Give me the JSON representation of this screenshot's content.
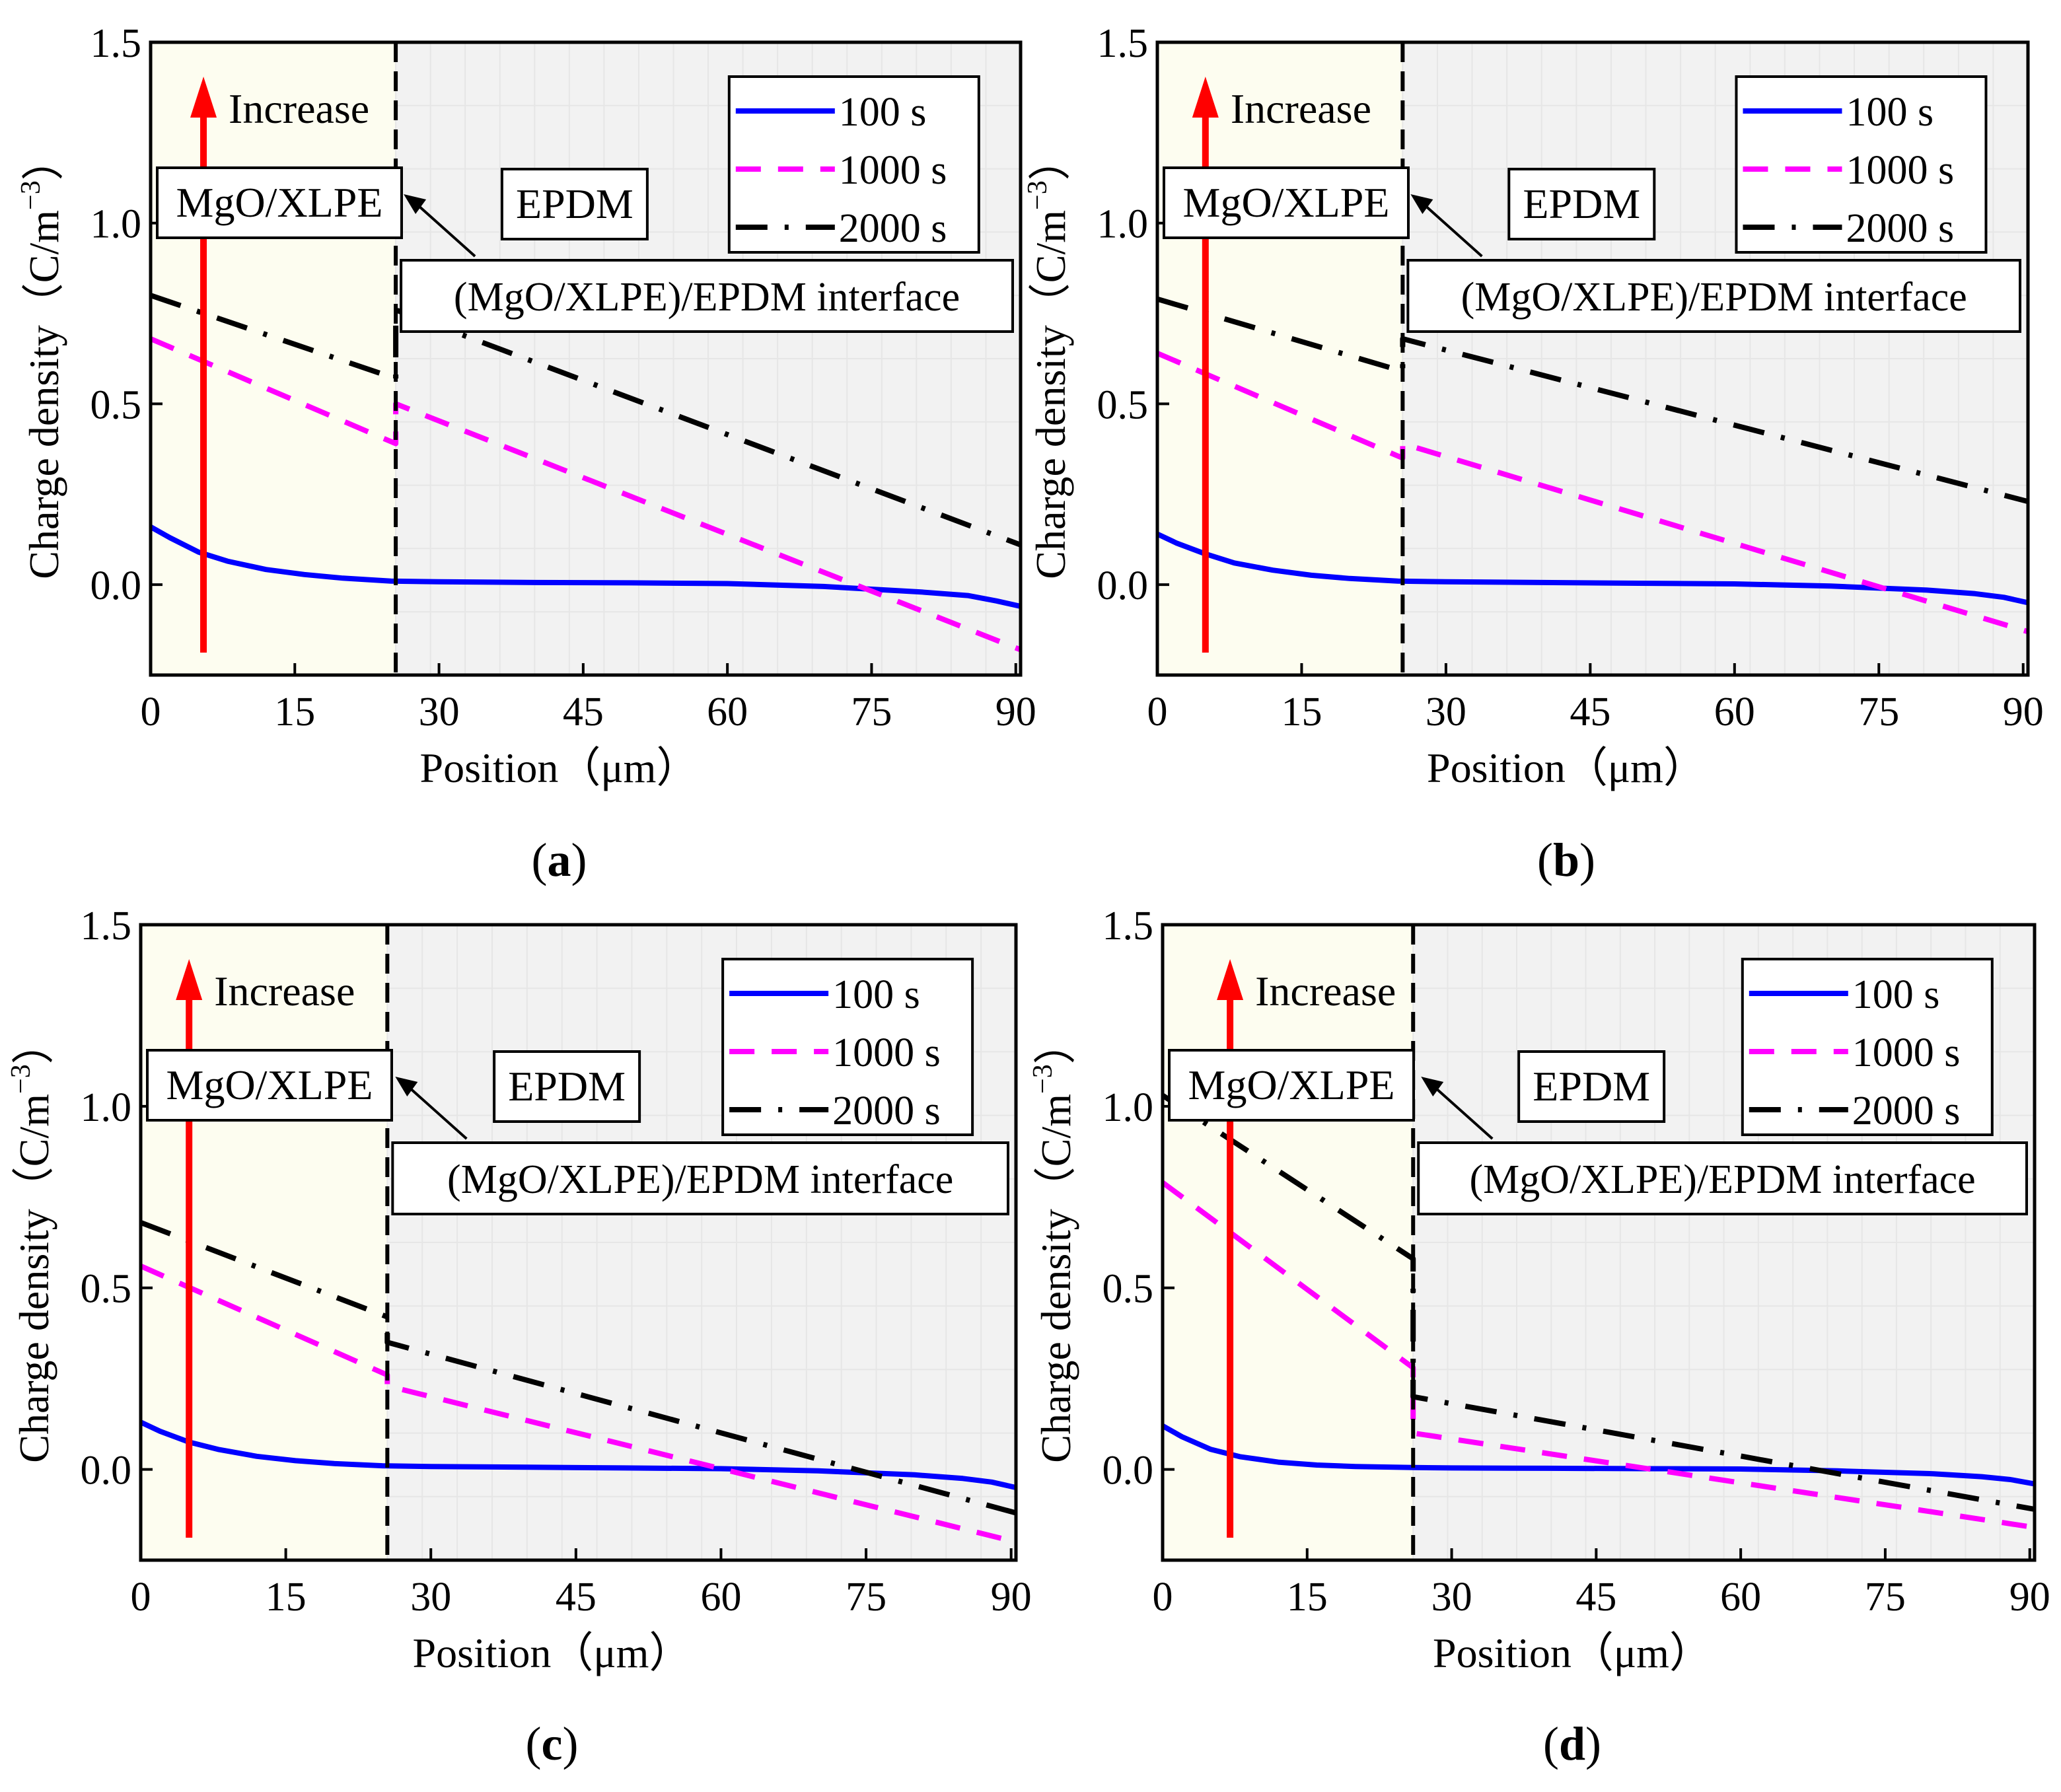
{
  "figure": {
    "panels": [
      {
        "letter": "a",
        "mgo_label": "MgO/XLPE",
        "epdm_label": "EPDM",
        "interface_label": "(MgO/XLPE)/EPDM  interface",
        "increase_label": "Increase",
        "arrow_x": 5.5,
        "xlabel": "Position（μm）",
        "ylabel": "Charge density（C/m"
      },
      {
        "letter": "b",
        "mgo_label": "MgO/XLPE",
        "epdm_label": "EPDM",
        "interface_label": "(MgO/XLPE)/EPDM interface",
        "increase_label": "Increase",
        "arrow_x": 5.0,
        "xlabel": "Position（μm）",
        "ylabel": "Charge density（C/m"
      },
      {
        "letter": "c",
        "mgo_label": "MgO/XLPE",
        "epdm_label": "EPDM",
        "interface_label": "(MgO/XLPE)/EPDM interface",
        "increase_label": "Increase",
        "arrow_x": 5.0,
        "xlabel": "Position（μm）",
        "ylabel": "Charge density（C/m"
      },
      {
        "letter": "d",
        "mgo_label": "MgO/XLPE",
        "epdm_label": "EPDM",
        "interface_label": "(MgO/XLPE)/EPDM interface",
        "increase_label": "Increase",
        "arrow_x": 7.0,
        "xlabel": "Position（μm）",
        "ylabel": "Charge density（C/m"
      }
    ],
    "ylabel_superscript": "−3",
    "ylabel_close": "）",
    "colors": {
      "s100": "#0000ff",
      "s1000": "#ff00ff",
      "s2000": "#000000",
      "arrow": "#ff0000",
      "mgo_region": "#fdfdf0",
      "epdm_region": "#f2f2f2"
    }
  },
  "chart_data": [
    {
      "type": "line",
      "panel": "a",
      "xlabel": "Position（μm）",
      "ylabel": "Charge density（C/m−3）",
      "xlim": [
        0,
        90.5
      ],
      "ylim": [
        -0.25,
        1.5
      ],
      "xticks": [
        0,
        15,
        30,
        45,
        60,
        75,
        90
      ],
      "yticks": [
        0.0,
        0.5,
        1.0,
        1.5
      ],
      "interface_x": 25.5,
      "series": [
        {
          "name": "100 s",
          "style": "solid",
          "x": [
            0,
            2,
            5,
            8,
            12,
            16,
            20,
            25,
            30,
            40,
            50,
            60,
            70,
            80,
            85,
            88,
            90.5
          ],
          "y": [
            0.16,
            0.13,
            0.09,
            0.065,
            0.042,
            0.028,
            0.018,
            0.01,
            0.008,
            0.006,
            0.005,
            0.003,
            -0.005,
            -0.02,
            -0.03,
            -0.045,
            -0.06
          ]
        },
        {
          "name": "1000 s",
          "style": "dashed",
          "x": [
            0,
            25.5,
            25.5,
            90.5
          ],
          "y": [
            0.68,
            0.39,
            0.5,
            -0.18
          ]
        },
        {
          "name": "2000 s",
          "style": "dashdot",
          "x": [
            0,
            25.5,
            25.5,
            90.5
          ],
          "y": [
            0.8,
            0.57,
            0.76,
            0.11
          ]
        }
      ]
    },
    {
      "type": "line",
      "panel": "b",
      "xlabel": "Position（μm）",
      "ylabel": "Charge density（C/m−3）",
      "xlim": [
        0,
        90.5
      ],
      "ylim": [
        -0.25,
        1.5
      ],
      "xticks": [
        0,
        15,
        30,
        45,
        60,
        75,
        90
      ],
      "yticks": [
        0.0,
        0.5,
        1.0,
        1.5
      ],
      "interface_x": 25.5,
      "series": [
        {
          "name": "100 s",
          "style": "solid",
          "x": [
            0,
            2,
            5,
            8,
            12,
            16,
            20,
            25,
            30,
            40,
            50,
            60,
            70,
            80,
            85,
            88,
            90.5
          ],
          "y": [
            0.14,
            0.115,
            0.085,
            0.06,
            0.04,
            0.026,
            0.017,
            0.01,
            0.008,
            0.006,
            0.004,
            0.002,
            -0.004,
            -0.015,
            -0.025,
            -0.035,
            -0.05
          ]
        },
        {
          "name": "1000 s",
          "style": "dashed",
          "x": [
            0,
            25.5,
            25.5,
            90.5
          ],
          "y": [
            0.64,
            0.35,
            0.39,
            -0.13
          ]
        },
        {
          "name": "2000 s",
          "style": "dashdot",
          "x": [
            0,
            25.5,
            25.5,
            90.5
          ],
          "y": [
            0.79,
            0.59,
            0.68,
            0.23
          ]
        }
      ]
    },
    {
      "type": "line",
      "panel": "c",
      "xlabel": "Position（μm）",
      "ylabel": "Charge density（C/m−3）",
      "xlim": [
        0,
        90.5
      ],
      "ylim": [
        -0.25,
        1.5
      ],
      "xticks": [
        0,
        15,
        30,
        45,
        60,
        75,
        90
      ],
      "yticks": [
        0.0,
        0.5,
        1.0,
        1.5
      ],
      "interface_x": 25.5,
      "series": [
        {
          "name": "100 s",
          "style": "solid",
          "x": [
            0,
            2,
            5,
            8,
            12,
            16,
            20,
            25,
            30,
            40,
            50,
            60,
            70,
            80,
            85,
            88,
            90.5
          ],
          "y": [
            0.13,
            0.105,
            0.075,
            0.055,
            0.036,
            0.024,
            0.016,
            0.01,
            0.008,
            0.006,
            0.004,
            0.002,
            -0.004,
            -0.015,
            -0.025,
            -0.035,
            -0.05
          ]
        },
        {
          "name": "1000 s",
          "style": "dashed",
          "x": [
            0,
            25.5,
            25.5,
            90.5
          ],
          "y": [
            0.56,
            0.26,
            0.23,
            -0.2
          ]
        },
        {
          "name": "2000 s",
          "style": "dashdot",
          "x": [
            0,
            25.5,
            25.5,
            90.5
          ],
          "y": [
            0.68,
            0.42,
            0.35,
            -0.12
          ]
        }
      ]
    },
    {
      "type": "line",
      "panel": "d",
      "xlabel": "Position（μm）",
      "ylabel": "Charge density（C/m−3）",
      "xlim": [
        0,
        90.5
      ],
      "ylim": [
        -0.25,
        1.5
      ],
      "xticks": [
        0,
        15,
        30,
        45,
        60,
        75,
        90
      ],
      "yticks": [
        0.0,
        0.5,
        1.0,
        1.5
      ],
      "interface_x": 26,
      "series": [
        {
          "name": "100 s",
          "style": "solid",
          "x": [
            0,
            2,
            5,
            8,
            12,
            16,
            20,
            26,
            30,
            40,
            50,
            60,
            70,
            80,
            85,
            88,
            90.5
          ],
          "y": [
            0.12,
            0.09,
            0.055,
            0.035,
            0.02,
            0.012,
            0.008,
            0.005,
            0.004,
            0.003,
            0.002,
            0.001,
            -0.004,
            -0.012,
            -0.02,
            -0.028,
            -0.04
          ]
        },
        {
          "name": "1000 s",
          "style": "dashed",
          "x": [
            0,
            26,
            26,
            90.5
          ],
          "y": [
            0.79,
            0.28,
            0.1,
            -0.16
          ]
        },
        {
          "name": "2000 s",
          "style": "dashdot",
          "x": [
            0,
            26,
            26,
            90.5
          ],
          "y": [
            1.03,
            0.58,
            0.2,
            -0.11
          ]
        }
      ]
    }
  ]
}
